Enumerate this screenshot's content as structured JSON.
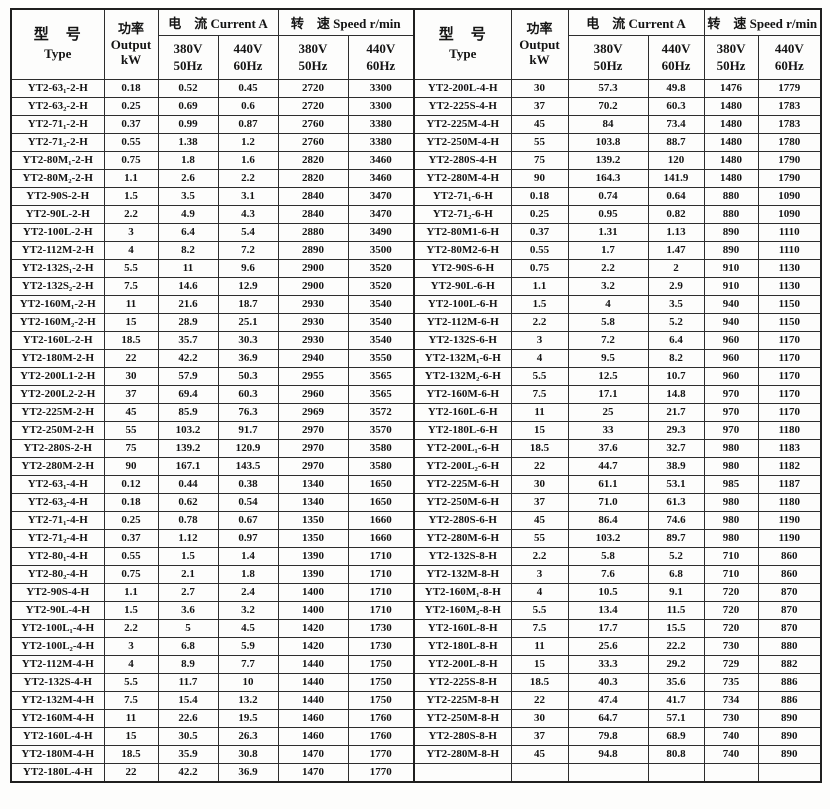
{
  "header": {
    "type_cn": "型　号",
    "type_en": "Type",
    "power_cn": "功率",
    "power_en": "Output",
    "power_unit": "kW",
    "current_group": "电　流 Current A",
    "speed_group": "转　速 Speed r/min",
    "v380": "380V",
    "hz50": "50Hz",
    "v440": "440V",
    "hz60": "60Hz"
  },
  "columns": [
    "type",
    "output-kw",
    "current-380v-50hz",
    "current-440v-60hz",
    "speed-380v-50hz",
    "speed-440v-60hz"
  ],
  "left_rows": [
    [
      "YT2-63₁-2-H",
      "0.18",
      "0.52",
      "0.45",
      "2720",
      "3300"
    ],
    [
      "YT2-63₂-2-H",
      "0.25",
      "0.69",
      "0.6",
      "2720",
      "3300"
    ],
    [
      "YT2-71₁-2-H",
      "0.37",
      "0.99",
      "0.87",
      "2760",
      "3380"
    ],
    [
      "YT2-71₂-2-H",
      "0.55",
      "1.38",
      "1.2",
      "2760",
      "3380"
    ],
    [
      "YT2-80M₁-2-H",
      "0.75",
      "1.8",
      "1.6",
      "2820",
      "3460"
    ],
    [
      "YT2-80M₂-2-H",
      "1.1",
      "2.6",
      "2.2",
      "2820",
      "3460"
    ],
    [
      "YT2-90S-2-H",
      "1.5",
      "3.5",
      "3.1",
      "2840",
      "3470"
    ],
    [
      "YT2-90L-2-H",
      "2.2",
      "4.9",
      "4.3",
      "2840",
      "3470"
    ],
    [
      "YT2-100L-2-H",
      "3",
      "6.4",
      "5.4",
      "2880",
      "3490"
    ],
    [
      "YT2-112M-2-H",
      "4",
      "8.2",
      "7.2",
      "2890",
      "3500"
    ],
    [
      "YT2-132S₁-2-H",
      "5.5",
      "11",
      "9.6",
      "2900",
      "3520"
    ],
    [
      "YT2-132S₂-2-H",
      "7.5",
      "14.6",
      "12.9",
      "2900",
      "3520"
    ],
    [
      "YT2-160M₁-2-H",
      "11",
      "21.6",
      "18.7",
      "2930",
      "3540"
    ],
    [
      "YT2-160M₂-2-H",
      "15",
      "28.9",
      "25.1",
      "2930",
      "3540"
    ],
    [
      "YT2-160L-2-H",
      "18.5",
      "35.7",
      "30.3",
      "2930",
      "3540"
    ],
    [
      "YT2-180M-2-H",
      "22",
      "42.2",
      "36.9",
      "2940",
      "3550"
    ],
    [
      "YT2-200L1-2-H",
      "30",
      "57.9",
      "50.3",
      "2955",
      "3565"
    ],
    [
      "YT2-200L2-2-H",
      "37",
      "69.4",
      "60.3",
      "2960",
      "3565"
    ],
    [
      "YT2-225M-2-H",
      "45",
      "85.9",
      "76.3",
      "2969",
      "3572"
    ],
    [
      "YT2-250M-2-H",
      "55",
      "103.2",
      "91.7",
      "2970",
      "3570"
    ],
    [
      "YT2-280S-2-H",
      "75",
      "139.2",
      "120.9",
      "2970",
      "3580"
    ],
    [
      "YT2-280M-2-H",
      "90",
      "167.1",
      "143.5",
      "2970",
      "3580"
    ],
    [
      "YT2-63₁-4-H",
      "0.12",
      "0.44",
      "0.38",
      "1340",
      "1650"
    ],
    [
      "YT2-63₂-4-H",
      "0.18",
      "0.62",
      "0.54",
      "1340",
      "1650"
    ],
    [
      "YT2-71₁-4-H",
      "0.25",
      "0.78",
      "0.67",
      "1350",
      "1660"
    ],
    [
      "YT2-71₂-4-H",
      "0.37",
      "1.12",
      "0.97",
      "1350",
      "1660"
    ],
    [
      "YT2-80₁-4-H",
      "0.55",
      "1.5",
      "1.4",
      "1390",
      "1710"
    ],
    [
      "YT2-80₂-4-H",
      "0.75",
      "2.1",
      "1.8",
      "1390",
      "1710"
    ],
    [
      "YT2-90S-4-H",
      "1.1",
      "2.7",
      "2.4",
      "1400",
      "1710"
    ],
    [
      "YT2-90L-4-H",
      "1.5",
      "3.6",
      "3.2",
      "1400",
      "1710"
    ],
    [
      "YT2-100L₁-4-H",
      "2.2",
      "5",
      "4.5",
      "1420",
      "1730"
    ],
    [
      "YT2-100L₂-4-H",
      "3",
      "6.8",
      "5.9",
      "1420",
      "1730"
    ],
    [
      "YT2-112M-4-H",
      "4",
      "8.9",
      "7.7",
      "1440",
      "1750"
    ],
    [
      "YT2-132S-4-H",
      "5.5",
      "11.7",
      "10",
      "1440",
      "1750"
    ],
    [
      "YT2-132M-4-H",
      "7.5",
      "15.4",
      "13.2",
      "1440",
      "1750"
    ],
    [
      "YT2-160M-4-H",
      "11",
      "22.6",
      "19.5",
      "1460",
      "1760"
    ],
    [
      "YT2-160L-4-H",
      "15",
      "30.5",
      "26.3",
      "1460",
      "1760"
    ],
    [
      "YT2-180M-4-H",
      "18.5",
      "35.9",
      "30.8",
      "1470",
      "1770"
    ],
    [
      "YT2-180L-4-H",
      "22",
      "42.2",
      "36.9",
      "1470",
      "1770"
    ]
  ],
  "right_rows": [
    [
      "YT2-200L-4-H",
      "30",
      "57.3",
      "49.8",
      "1476",
      "1779"
    ],
    [
      "YT2-225S-4-H",
      "37",
      "70.2",
      "60.3",
      "1480",
      "1783"
    ],
    [
      "YT2-225M-4-H",
      "45",
      "84",
      "73.4",
      "1480",
      "1783"
    ],
    [
      "YT2-250M-4-H",
      "55",
      "103.8",
      "88.7",
      "1480",
      "1780"
    ],
    [
      "YT2-280S-4-H",
      "75",
      "139.2",
      "120",
      "1480",
      "1790"
    ],
    [
      "YT2-280M-4-H",
      "90",
      "164.3",
      "141.9",
      "1480",
      "1790"
    ],
    [
      "YT2-71₁-6-H",
      "0.18",
      "0.74",
      "0.64",
      "880",
      "1090"
    ],
    [
      "YT2-71₂-6-H",
      "0.25",
      "0.95",
      "0.82",
      "880",
      "1090"
    ],
    [
      "YT2-80M1-6-H",
      "0.37",
      "1.31",
      "1.13",
      "890",
      "1110"
    ],
    [
      "YT2-80M2-6-H",
      "0.55",
      "1.7",
      "1.47",
      "890",
      "1110"
    ],
    [
      "YT2-90S-6-H",
      "0.75",
      "2.2",
      "2",
      "910",
      "1130"
    ],
    [
      "YT2-90L-6-H",
      "1.1",
      "3.2",
      "2.9",
      "910",
      "1130"
    ],
    [
      "YT2-100L-6-H",
      "1.5",
      "4",
      "3.5",
      "940",
      "1150"
    ],
    [
      "YT2-112M-6-H",
      "2.2",
      "5.8",
      "5.2",
      "940",
      "1150"
    ],
    [
      "YT2-132S-6-H",
      "3",
      "7.2",
      "6.4",
      "960",
      "1170"
    ],
    [
      "YT2-132M₁-6-H",
      "4",
      "9.5",
      "8.2",
      "960",
      "1170"
    ],
    [
      "YT2-132M₂-6-H",
      "5.5",
      "12.5",
      "10.7",
      "960",
      "1170"
    ],
    [
      "YT2-160M-6-H",
      "7.5",
      "17.1",
      "14.8",
      "970",
      "1170"
    ],
    [
      "YT2-160L-6-H",
      "11",
      "25",
      "21.7",
      "970",
      "1170"
    ],
    [
      "YT2-180L-6-H",
      "15",
      "33",
      "29.3",
      "970",
      "1180"
    ],
    [
      "YT2-200L₁-6-H",
      "18.5",
      "37.6",
      "32.7",
      "980",
      "1183"
    ],
    [
      "YT2-200L₂-6-H",
      "22",
      "44.7",
      "38.9",
      "980",
      "1182"
    ],
    [
      "YT2-225M-6-H",
      "30",
      "61.1",
      "53.1",
      "985",
      "1187"
    ],
    [
      "YT2-250M-6-H",
      "37",
      "71.0",
      "61.3",
      "980",
      "1180"
    ],
    [
      "YT2-280S-6-H",
      "45",
      "86.4",
      "74.6",
      "980",
      "1190"
    ],
    [
      "YT2-280M-6-H",
      "55",
      "103.2",
      "89.7",
      "980",
      "1190"
    ],
    [
      "YT2-132S-8-H",
      "2.2",
      "5.8",
      "5.2",
      "710",
      "860"
    ],
    [
      "YT2-132M-8-H",
      "3",
      "7.6",
      "6.8",
      "710",
      "860"
    ],
    [
      "YT2-160M₁-8-H",
      "4",
      "10.5",
      "9.1",
      "720",
      "870"
    ],
    [
      "YT2-160M₂-8-H",
      "5.5",
      "13.4",
      "11.5",
      "720",
      "870"
    ],
    [
      "YT2-160L-8-H",
      "7.5",
      "17.7",
      "15.5",
      "720",
      "870"
    ],
    [
      "YT2-180L-8-H",
      "11",
      "25.6",
      "22.2",
      "730",
      "880"
    ],
    [
      "YT2-200L-8-H",
      "15",
      "33.3",
      "29.2",
      "729",
      "882"
    ],
    [
      "YT2-225S-8-H",
      "18.5",
      "40.3",
      "35.6",
      "735",
      "886"
    ],
    [
      "YT2-225M-8-H",
      "22",
      "47.4",
      "41.7",
      "734",
      "886"
    ],
    [
      "YT2-250M-8-H",
      "30",
      "64.7",
      "57.1",
      "730",
      "890"
    ],
    [
      "YT2-280S-8-H",
      "37",
      "79.8",
      "68.9",
      "740",
      "890"
    ],
    [
      "YT2-280M-8-H",
      "45",
      "94.8",
      "80.8",
      "740",
      "890"
    ],
    [
      "",
      "",
      "",
      "",
      "",
      ""
    ]
  ]
}
